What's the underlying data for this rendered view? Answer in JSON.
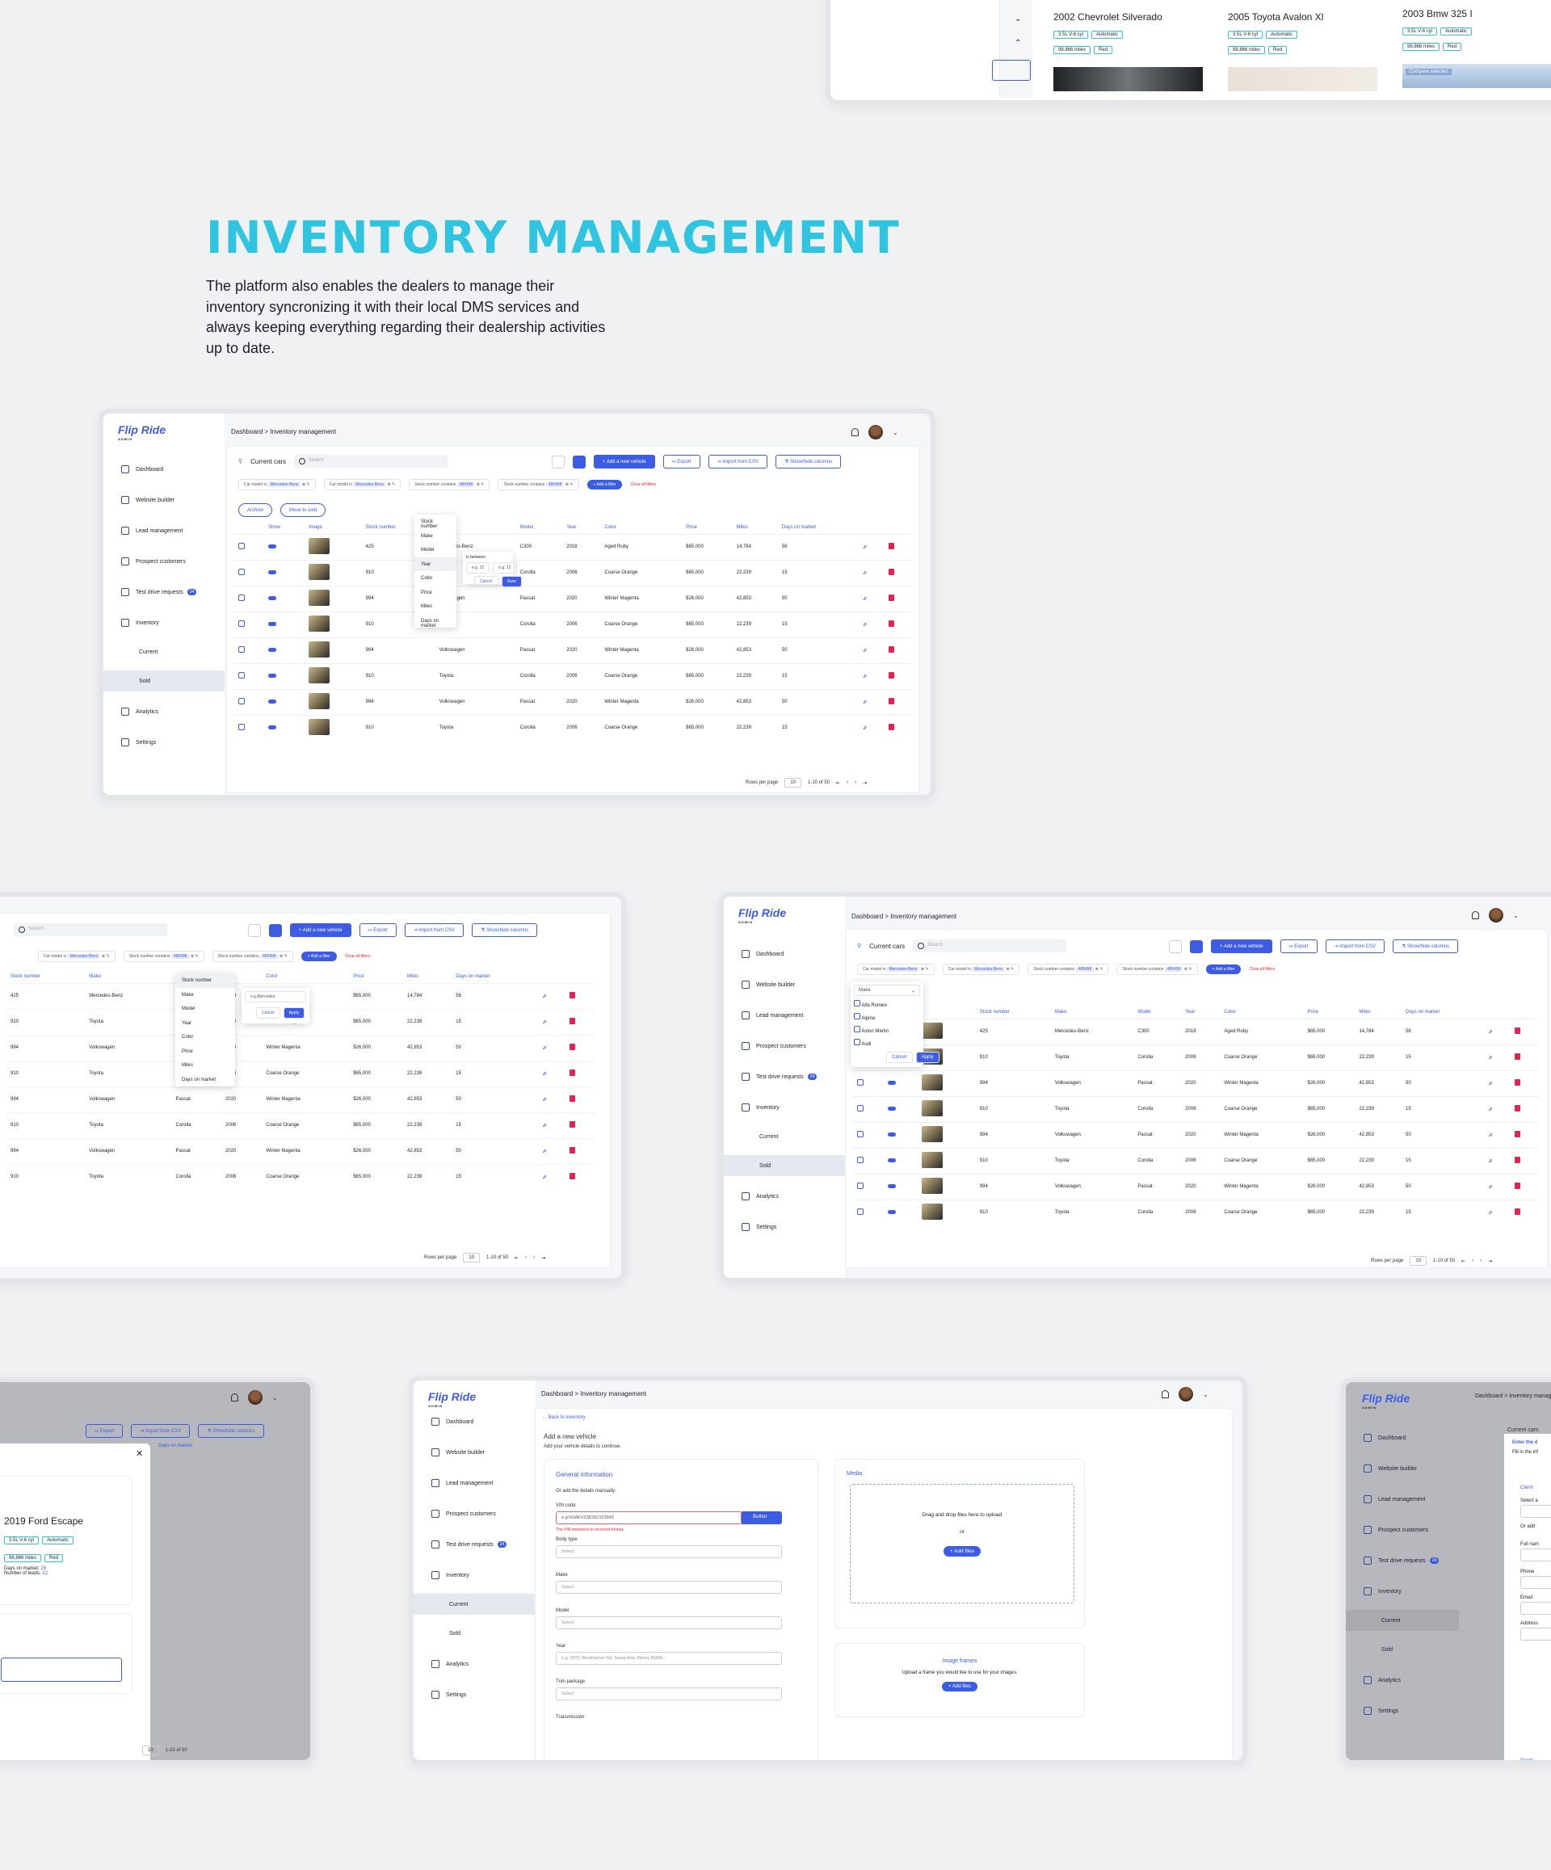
{
  "hero": {
    "title": "INVENTORY MANAGEMENT",
    "description": "The platform also enables the dealers to manage their inventory syncronizing it with their local DMS services and always keeping everything regarding their dealership activities up to date."
  },
  "compare_cards": [
    {
      "title": "2002 Chevrolet Silverado",
      "engine": "3.5L V-6 cyl",
      "transmission": "Automatic",
      "miles": "98,866 miles",
      "color": "Red"
    },
    {
      "title": "2005 Toyota Avalon Xl",
      "engine": "3.5L V-6 cyl",
      "transmission": "Automatic",
      "miles": "98,866 miles",
      "color": "Red"
    },
    {
      "title": "2003 Bmw 325 I",
      "engine": "3.5L V-6 cyl",
      "transmission": "Automatic",
      "miles": "98,866 miles",
      "color": "Red"
    }
  ],
  "compare_selected": "Compare selected",
  "sidebar": {
    "logo": "Flip Ride",
    "logo_sub": "ADMIN",
    "items": [
      "Dashboard",
      "Website builder",
      "Lead management",
      "Prospect customers",
      "Test drive requests",
      "Inventory",
      "Current",
      "Sold",
      "Analytics",
      "Settings"
    ],
    "badge": "24"
  },
  "breadcrumb": "Dashboard  >  Inventory management",
  "toolbar": {
    "title": "Current cars",
    "search_placeholder": "Search",
    "add": "+ Add a new vehicle",
    "export": "↦ Export",
    "import": "⇥ Import from CSV",
    "columns": "⚗ Show/hide columns",
    "archive": "Archive",
    "move_sold": "Move to sold"
  },
  "filters": {
    "f1": "Car model is",
    "f1v": "Mercedes-Benz",
    "f2": "Car model is",
    "f2v": "Mercedes-Benz",
    "f3": "Stock number  contains",
    "f3v": "485498",
    "f4": "Stock number  contains",
    "f4v": "485498",
    "add": "+ Add a filter",
    "clear": "Clear all filters"
  },
  "columns": [
    "Show",
    "Image",
    "Stock number",
    "Make",
    "Model",
    "Year",
    "Color",
    "Price",
    "Miles",
    "Days on market"
  ],
  "rows": [
    {
      "stock": "425",
      "make": "Mercedes-Benz",
      "model": "C300",
      "year": "2018",
      "color": "Aged Ruby",
      "price": "$65,000",
      "miles": "14,784",
      "days": "56"
    },
    {
      "stock": "910",
      "make": "Toyota",
      "model": "Corolla",
      "year": "2006",
      "color": "Coarse Orange",
      "price": "$65,000",
      "miles": "22,239",
      "days": "15"
    },
    {
      "stock": "994",
      "make": "Volkswagen",
      "model": "Passat",
      "year": "2020",
      "color": "Winter Magenta",
      "price": "$26,000",
      "miles": "42,853",
      "days": "50"
    },
    {
      "stock": "910",
      "make": "Toyota",
      "model": "Corolla",
      "year": "2006",
      "color": "Coarse Orange",
      "price": "$65,000",
      "miles": "22,239",
      "days": "15"
    },
    {
      "stock": "994",
      "make": "Volkswagen",
      "model": "Passat",
      "year": "2020",
      "color": "Winter Magenta",
      "price": "$26,000",
      "miles": "42,853",
      "days": "50"
    },
    {
      "stock": "910",
      "make": "Toyota",
      "model": "Corolla",
      "year": "2006",
      "color": "Coarse Orange",
      "price": "$65,000",
      "miles": "22,239",
      "days": "15"
    },
    {
      "stock": "994",
      "make": "Volkswagen",
      "model": "Passat",
      "year": "2020",
      "color": "Winter Magenta",
      "price": "$26,000",
      "miles": "42,853",
      "days": "50"
    },
    {
      "stock": "910",
      "make": "Toyota",
      "model": "Corolla",
      "year": "2006",
      "color": "Coarse Orange",
      "price": "$65,000",
      "miles": "22,239",
      "days": "15"
    }
  ],
  "column_menu": [
    "Stock number",
    "Make",
    "Model",
    "Year",
    "Color",
    "Price",
    "Miles",
    "Days on market"
  ],
  "year_filter": {
    "label": "is between",
    "from": "e.g. 12",
    "to": "e.g. 12",
    "cancel": "Cancel",
    "save": "Save"
  },
  "make_filter": {
    "select": "Make",
    "options": [
      "Alfa Romeo",
      "Alpina",
      "Aston Martin",
      "Audi"
    ],
    "cancel": "Cancel",
    "apply": "Apply",
    "placeholder": "e.g.Mercedes"
  },
  "pagination": {
    "rows_label": "Rows per page",
    "rows_value": "10",
    "range": "1-10 of 50"
  },
  "modal": {
    "title": "2019 Ford Escape",
    "engine": "3.5L V-6 cyl",
    "transmission": "Automatic",
    "miles": "98,866 miles",
    "color": "Red",
    "days_label": "Days on market:",
    "days": "26",
    "leads_label": "Number of leads:",
    "leads": "12"
  },
  "form": {
    "back": "← Back to inventory",
    "title": "Add a new vehicle",
    "subtitle": "Add your vehicle details to continue.",
    "general": "General information",
    "manual": "Or add the details manually.",
    "vin_label": "VIN code",
    "vin_value": "e.g:5GAEV23D39J103943",
    "vin_button": "Button",
    "vin_error": "The VIN entered is in incorrect format.",
    "body_label": "Body type",
    "make_label": "Make",
    "model_label": "Model",
    "year_label": "Year",
    "year_placeholder": "e.g. 2972 Westheimer Rd. Santa Ana, Illinois 85486",
    "trim_label": "Trim package",
    "trans_label": "Transmission",
    "select": "Select",
    "media": "Media",
    "drop": "Drag and drop files here to upload",
    "or": "or",
    "add_files": "+ Add files",
    "frames": "Image frames",
    "frames_sub": "Upload a frame you would like to use for your images."
  },
  "right_partial": {
    "title": "Enter the d",
    "sub": "Fill in the inf",
    "client": "Client",
    "select_a": "Select a",
    "or_add": "Or add",
    "full": "Full nam",
    "phone": "Phone",
    "email": "Email",
    "address": "Address",
    "purch": "Purch",
    "current": "Current cars"
  }
}
